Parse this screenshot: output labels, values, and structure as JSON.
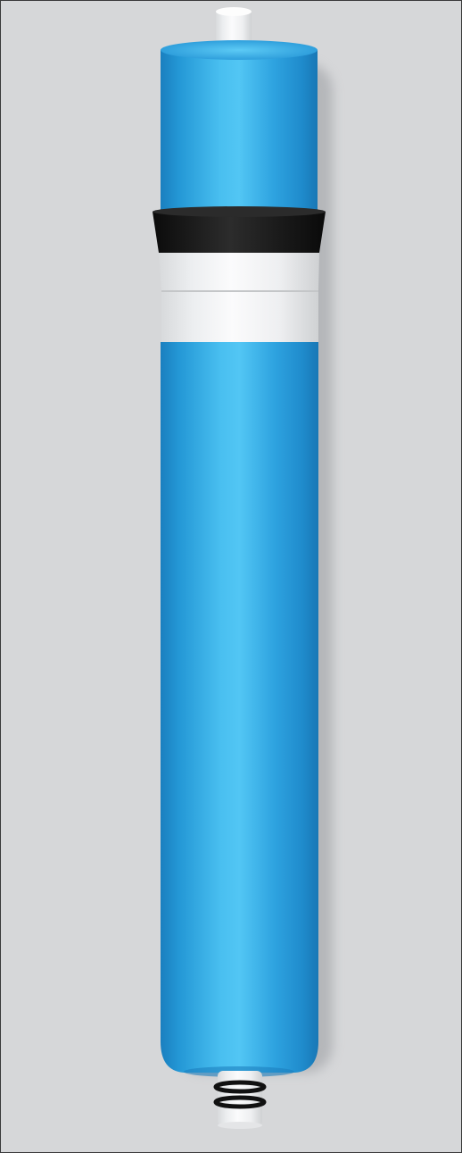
{
  "scene": {
    "subject": "ro-membrane-cartridge",
    "colors": {
      "background": "#d6d7d9",
      "frame_border": "#3a3a3a",
      "housing_blue": "#2fa6e2",
      "housing_blue_light": "#52c4f2",
      "housing_blue_dark": "#1c86c6",
      "brine_seal_black": "#141414",
      "end_cap_white": "#f3f4f5",
      "fitting_white": "#f7f7f7",
      "o_ring_black": "#111111"
    }
  }
}
